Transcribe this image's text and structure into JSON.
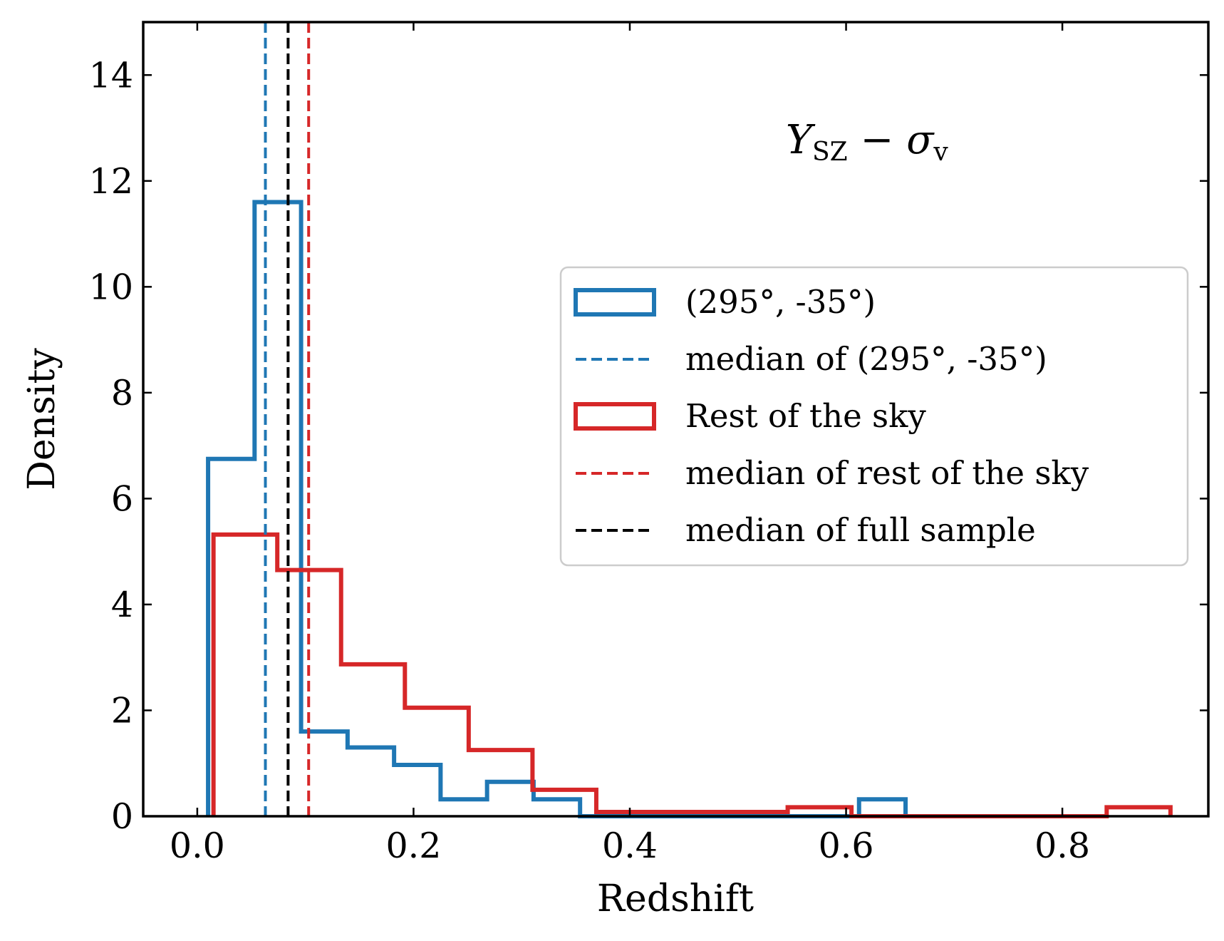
{
  "chart_data": {
    "type": "histogram",
    "title": "",
    "xlabel": "Redshift",
    "ylabel": "Density",
    "xlim": [
      -0.05,
      0.935
    ],
    "ylim": [
      0,
      15
    ],
    "xticks": [
      0.0,
      0.2,
      0.4,
      0.6,
      0.8
    ],
    "xtick_labels": [
      "0.0",
      "0.2",
      "0.4",
      "0.6",
      "0.8"
    ],
    "yticks": [
      0,
      2,
      4,
      6,
      8,
      10,
      12,
      14
    ],
    "ytick_labels": [
      "0",
      "2",
      "4",
      "6",
      "8",
      "10",
      "12",
      "14"
    ],
    "annotation": {
      "main": "Y",
      "sub": "SZ",
      "dash": " − ",
      "sigma": "σ",
      "sigma_sub": "v"
    },
    "series": [
      {
        "name": "(295°, -35°)",
        "kind": "step-histogram",
        "color": "#1f77b4",
        "edges": [
          0.01,
          0.053,
          0.096,
          0.139,
          0.182,
          0.225,
          0.268,
          0.311,
          0.354,
          0.397,
          0.44,
          0.483,
          0.526,
          0.569,
          0.612,
          0.655
        ],
        "values": [
          6.75,
          11.6,
          1.6,
          1.3,
          0.97,
          0.32,
          0.65,
          0.32,
          0.0,
          0.0,
          0.0,
          0.0,
          0.0,
          0.0,
          0.32
        ]
      },
      {
        "name": "Rest of the sky",
        "kind": "step-histogram",
        "color": "#d62728",
        "edges": [
          0.015,
          0.074,
          0.133,
          0.192,
          0.251,
          0.31,
          0.369,
          0.428,
          0.487,
          0.546,
          0.605,
          0.664,
          0.723,
          0.782,
          0.841,
          0.9
        ],
        "values": [
          5.32,
          4.65,
          2.87,
          2.05,
          1.25,
          0.5,
          0.08,
          0.08,
          0.08,
          0.17,
          0.0,
          0.0,
          0.0,
          0.0,
          0.17
        ]
      },
      {
        "name": "median of (295°, -35°)",
        "kind": "vline",
        "x": 0.063,
        "color": "#1f77b4"
      },
      {
        "name": "median of rest of the sky",
        "kind": "vline",
        "x": 0.103,
        "color": "#d62728"
      },
      {
        "name": "median of full sample",
        "kind": "vline",
        "x": 0.084,
        "color": "#000000"
      }
    ],
    "legend": {
      "position": "center-right",
      "entries": [
        {
          "label": "(295°, -35°)",
          "style": "patch",
          "color": "#1f77b4"
        },
        {
          "label": "median of (295°, -35°)",
          "style": "dashed",
          "color": "#1f77b4"
        },
        {
          "label": "Rest of the sky",
          "style": "patch",
          "color": "#d62728"
        },
        {
          "label": "median of rest of the sky",
          "style": "dashed",
          "color": "#d62728"
        },
        {
          "label": "median of full sample",
          "style": "dashed",
          "color": "#000000"
        }
      ]
    }
  }
}
